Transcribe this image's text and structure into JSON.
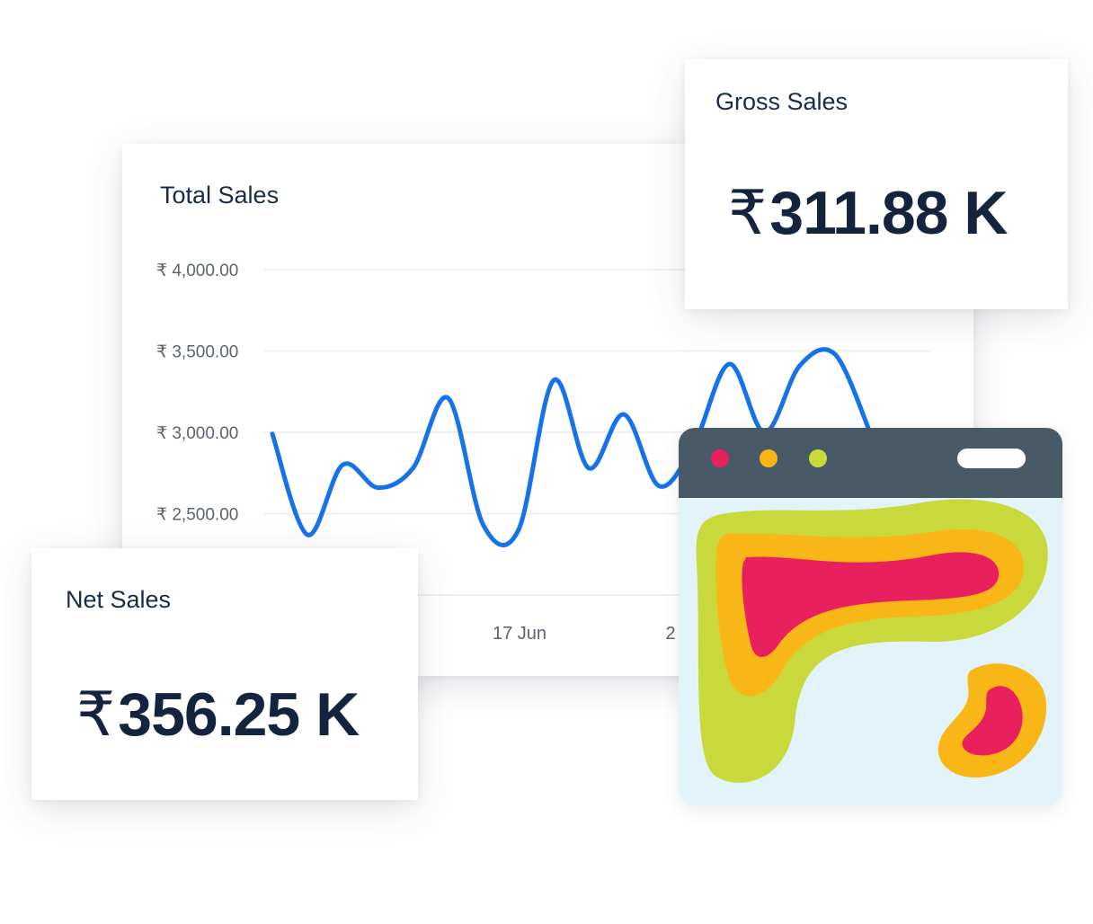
{
  "total_sales": {
    "title": "Total Sales"
  },
  "gross_sales": {
    "title": "Gross Sales",
    "currency": "₹",
    "value": "311.88 K"
  },
  "net_sales": {
    "title": "Net Sales",
    "currency": "₹",
    "value": "356.25 K"
  },
  "colors": {
    "line": "#1572e8",
    "heat_red": "#e8215e",
    "heat_orange": "#f9b617",
    "heat_green": "#c9d93b",
    "window_bar": "#475a65",
    "window_body": "#e2f4fa"
  },
  "chart_data": {
    "type": "line",
    "title": "Total Sales",
    "xlabel": "",
    "ylabel": "",
    "ylim": [
      2000,
      4000
    ],
    "y_ticks": [
      {
        "value": 4000,
        "label": "₹ 4,000.00"
      },
      {
        "value": 3500,
        "label": "₹ 3,500.00"
      },
      {
        "value": 3000,
        "label": "₹ 3,000.00"
      },
      {
        "value": 2500,
        "label": "₹ 2,500.00"
      }
    ],
    "x_tick_labels": [
      "17 Jun",
      "2"
    ],
    "grid": true,
    "series": [
      {
        "values": [
          2990,
          2370,
          2800,
          2660,
          2780,
          3210,
          2430,
          2400,
          3320,
          2780,
          3110,
          2670,
          2930,
          3420,
          3000,
          3410,
          3480,
          3000
        ]
      }
    ]
  }
}
